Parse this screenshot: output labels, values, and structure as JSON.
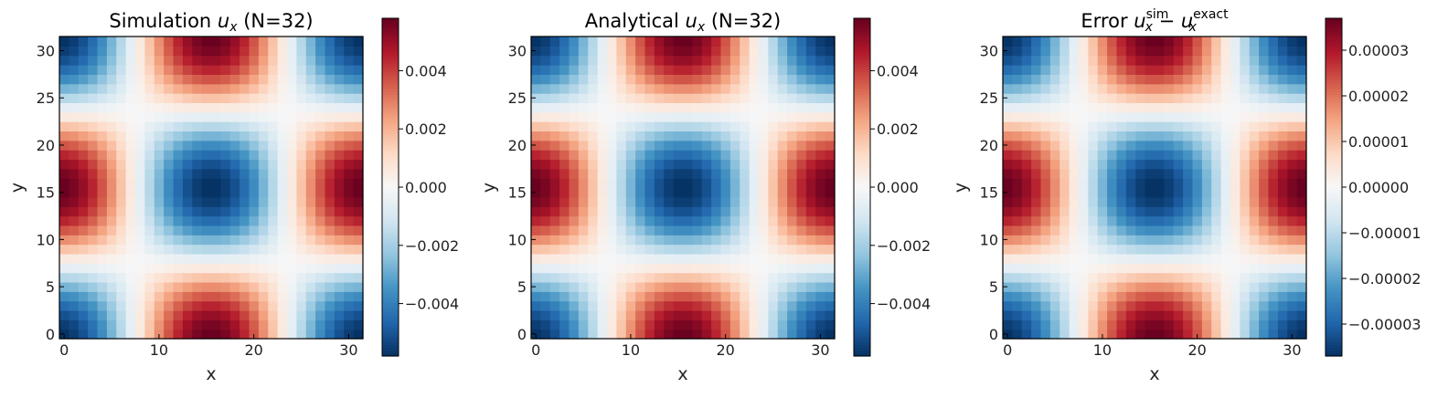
{
  "chart_data": [
    {
      "type": "heatmap",
      "title": {
        "prefix": "Simulation ",
        "var": "u",
        "sub": "x",
        "suffix": " (N=32)"
      },
      "xlabel": "x",
      "ylabel": "y",
      "grid_n": 32,
      "x_ticks": [
        0,
        10,
        20,
        30
      ],
      "y_ticks": [
        0,
        5,
        10,
        15,
        20,
        25,
        30
      ],
      "colormap": "RdBu_r",
      "field": "ux_sim",
      "amplitude": 0.0058,
      "vmin": -0.0058,
      "vmax": 0.0058,
      "colorbar_ticks": [
        -0.004,
        -0.002,
        0.0,
        0.002,
        0.004
      ],
      "colorbar_ticklabels": [
        "−0.004",
        "−0.002",
        "0.000",
        "0.002",
        "0.004"
      ]
    },
    {
      "type": "heatmap",
      "title": {
        "prefix": "Analytical ",
        "var": "u",
        "sub": "x",
        "suffix": " (N=32)"
      },
      "xlabel": "x",
      "ylabel": "y",
      "grid_n": 32,
      "x_ticks": [
        0,
        10,
        20,
        30
      ],
      "y_ticks": [
        0,
        5,
        10,
        15,
        20,
        25,
        30
      ],
      "colormap": "RdBu_r",
      "field": "ux_exact",
      "amplitude": 0.0058,
      "vmin": -0.0058,
      "vmax": 0.0058,
      "colorbar_ticks": [
        -0.004,
        -0.002,
        0.0,
        0.002,
        0.004
      ],
      "colorbar_ticklabels": [
        "−0.004",
        "−0.002",
        "0.000",
        "0.002",
        "0.004"
      ]
    },
    {
      "type": "heatmap",
      "title": {
        "prefix": "Error ",
        "var": "u",
        "sub": "x",
        "sup": "sim",
        "minus": " − ",
        "var2": "u",
        "sub2": "x",
        "sup2": "exact"
      },
      "xlabel": "x",
      "ylabel": "y",
      "grid_n": 32,
      "x_ticks": [
        0,
        10,
        20,
        30
      ],
      "y_ticks": [
        0,
        5,
        10,
        15,
        20,
        25,
        30
      ],
      "colormap": "RdBu_r",
      "field": "ux_error",
      "amplitude": 3.7e-05,
      "vmin": -3.7e-05,
      "vmax": 3.7e-05,
      "colorbar_ticks": [
        -3e-05,
        -2e-05,
        -1e-05,
        0.0,
        1e-05,
        2e-05,
        3e-05
      ],
      "colorbar_ticklabels": [
        "−0.00003",
        "−0.00002",
        "−0.00001",
        "0.00000",
        "0.00001",
        "0.00002",
        "0.00003"
      ]
    }
  ]
}
